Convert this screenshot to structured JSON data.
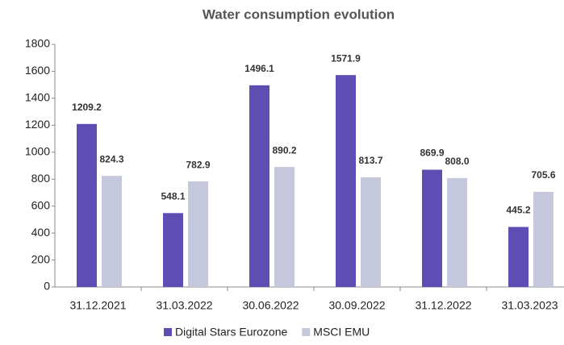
{
  "chart_data": {
    "type": "bar",
    "title": "Water consumption evolution",
    "categories": [
      "31.12.2021",
      "31.03.2022",
      "30.06.2022",
      "30.09.2022",
      "31.12.2022",
      "31.03.2023"
    ],
    "series": [
      {
        "name": "Digital Stars Eurozone",
        "color": "#5e4db2",
        "values": [
          1209.2,
          548.1,
          1496.1,
          1571.9,
          869.9,
          445.2
        ],
        "value_labels": [
          "1209.2",
          "548.1",
          "1496.1",
          "1571.9",
          "869.9",
          "445.2"
        ]
      },
      {
        "name": "MSCI EMU",
        "color": "#c5c8dc",
        "values": [
          824.3,
          782.9,
          890.2,
          813.7,
          808.0,
          705.6
        ],
        "value_labels": [
          "824.3",
          "782.9",
          "890.2",
          "813.7",
          "808.0",
          "705.6"
        ]
      }
    ],
    "ylim": [
      0,
      1800
    ],
    "yticks": [
      0,
      200,
      400,
      600,
      800,
      1000,
      1200,
      1400,
      1600,
      1800
    ],
    "grid": false,
    "legend": "bottom"
  }
}
